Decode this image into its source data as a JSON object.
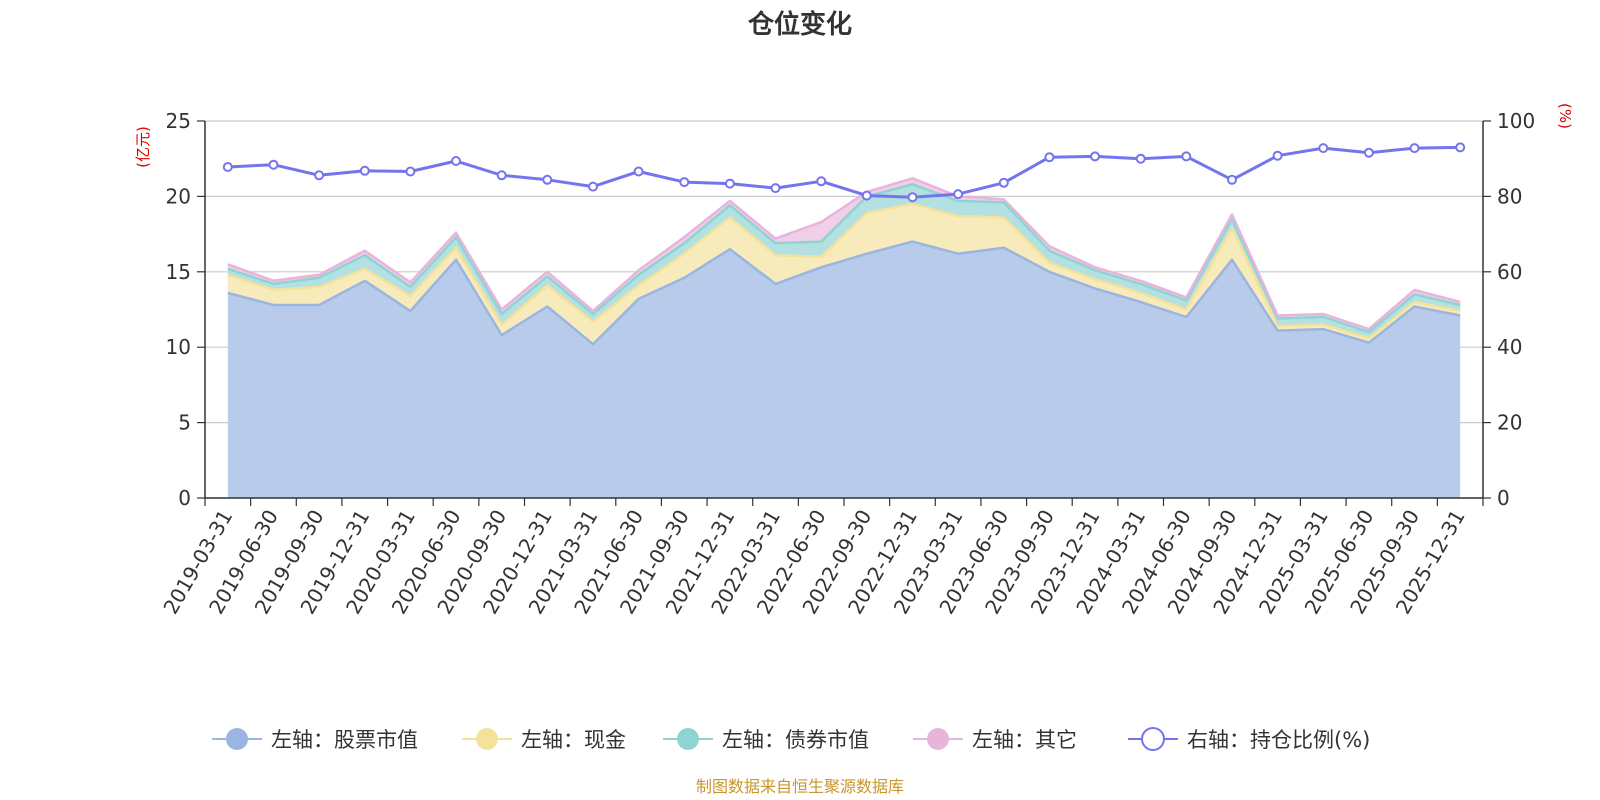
{
  "chart_data": {
    "type": "area",
    "title": "仓位变化",
    "y_left_unit": "(亿元)",
    "y_right_unit": "(%)",
    "y_left_range": [
      0,
      25
    ],
    "y_left_ticks": [
      "0",
      "5",
      "10",
      "15",
      "20",
      "25"
    ],
    "y_right_range": [
      0,
      100
    ],
    "y_right_ticks": [
      "0",
      "20",
      "40",
      "60",
      "80",
      "100"
    ],
    "categories": [
      "2019-03-31",
      "2019-06-30",
      "2019-09-30",
      "2019-12-31",
      "2020-03-31",
      "2020-06-30",
      "2020-09-30",
      "2020-12-31",
      "2021-03-31",
      "2021-06-30",
      "2021-09-30",
      "2021-12-31",
      "2022-03-31",
      "2022-06-30",
      "2022-09-30",
      "2022-12-31",
      "2023-03-31",
      "2023-06-30",
      "2023-09-30",
      "2023-12-31",
      "2024-03-31",
      "2024-06-30",
      "2024-09-30",
      "2024-12-31",
      "2025-03-31",
      "2025-06-30",
      "2025-09-30",
      "2025-12-31"
    ],
    "series": [
      {
        "name": "左轴：股票市值",
        "axis": "left",
        "stacked": true,
        "color": "#9ab5e0",
        "values": [
          13.6,
          12.8,
          12.8,
          14.4,
          12.4,
          15.8,
          10.8,
          12.7,
          10.2,
          13.2,
          14.6,
          16.5,
          14.2,
          15.3,
          16.2,
          17.0,
          16.2,
          16.6,
          15.0,
          13.9,
          13.0,
          12.0,
          15.8,
          11.1,
          11.2,
          10.3,
          12.7,
          12.1
        ],
        "fill": "#b8cbea"
      },
      {
        "name": "左轴：现金",
        "axis": "left",
        "stacked": true,
        "color": "#f5e29a",
        "values": [
          1.2,
          1.0,
          1.2,
          0.8,
          1.0,
          0.8,
          0.7,
          1.4,
          1.5,
          0.9,
          1.6,
          2.1,
          1.9,
          0.7,
          2.7,
          2.5,
          2.5,
          2.0,
          0.6,
          0.6,
          0.6,
          0.5,
          2.1,
          0.3,
          0.3,
          0.3,
          0.3,
          0.3
        ],
        "fill": "#f8ebbb"
      },
      {
        "name": "左轴：债券市值",
        "axis": "left",
        "stacked": true,
        "color": "#8fd3d3",
        "values": [
          0.4,
          0.4,
          0.6,
          0.9,
          0.6,
          0.7,
          0.7,
          0.6,
          0.5,
          0.7,
          0.7,
          0.8,
          0.8,
          1.0,
          1.1,
          1.3,
          1.0,
          1.0,
          0.8,
          0.6,
          0.6,
          0.6,
          0.6,
          0.5,
          0.5,
          0.4,
          0.5,
          0.4
        ],
        "fill": "#b3e0e0"
      },
      {
        "name": "左轴：其它",
        "axis": "left",
        "stacked": true,
        "color": "#e8b4dc",
        "values": [
          0.3,
          0.2,
          0.2,
          0.3,
          0.3,
          0.3,
          0.3,
          0.3,
          0.2,
          0.3,
          0.4,
          0.3,
          0.3,
          1.3,
          0.3,
          0.4,
          0.3,
          0.2,
          0.3,
          0.2,
          0.2,
          0.2,
          0.3,
          0.2,
          0.2,
          0.2,
          0.3,
          0.2
        ],
        "fill": "#f0cfe8"
      },
      {
        "name": "右轴：持仓比例(%)",
        "axis": "right",
        "type": "line",
        "color": "#7474ee",
        "values": [
          87.8,
          88.4,
          85.6,
          86.8,
          86.6,
          89.4,
          85.6,
          84.4,
          82.6,
          86.6,
          83.8,
          83.4,
          82.2,
          84.0,
          80.2,
          79.8,
          80.6,
          83.6,
          90.4,
          90.6,
          90.0,
          90.6,
          84.4,
          90.8,
          92.8,
          91.6,
          92.8,
          93.0
        ]
      }
    ],
    "legend_position": "bottom",
    "grid": true
  },
  "source_note": "制图数据来自恒生聚源数据库"
}
